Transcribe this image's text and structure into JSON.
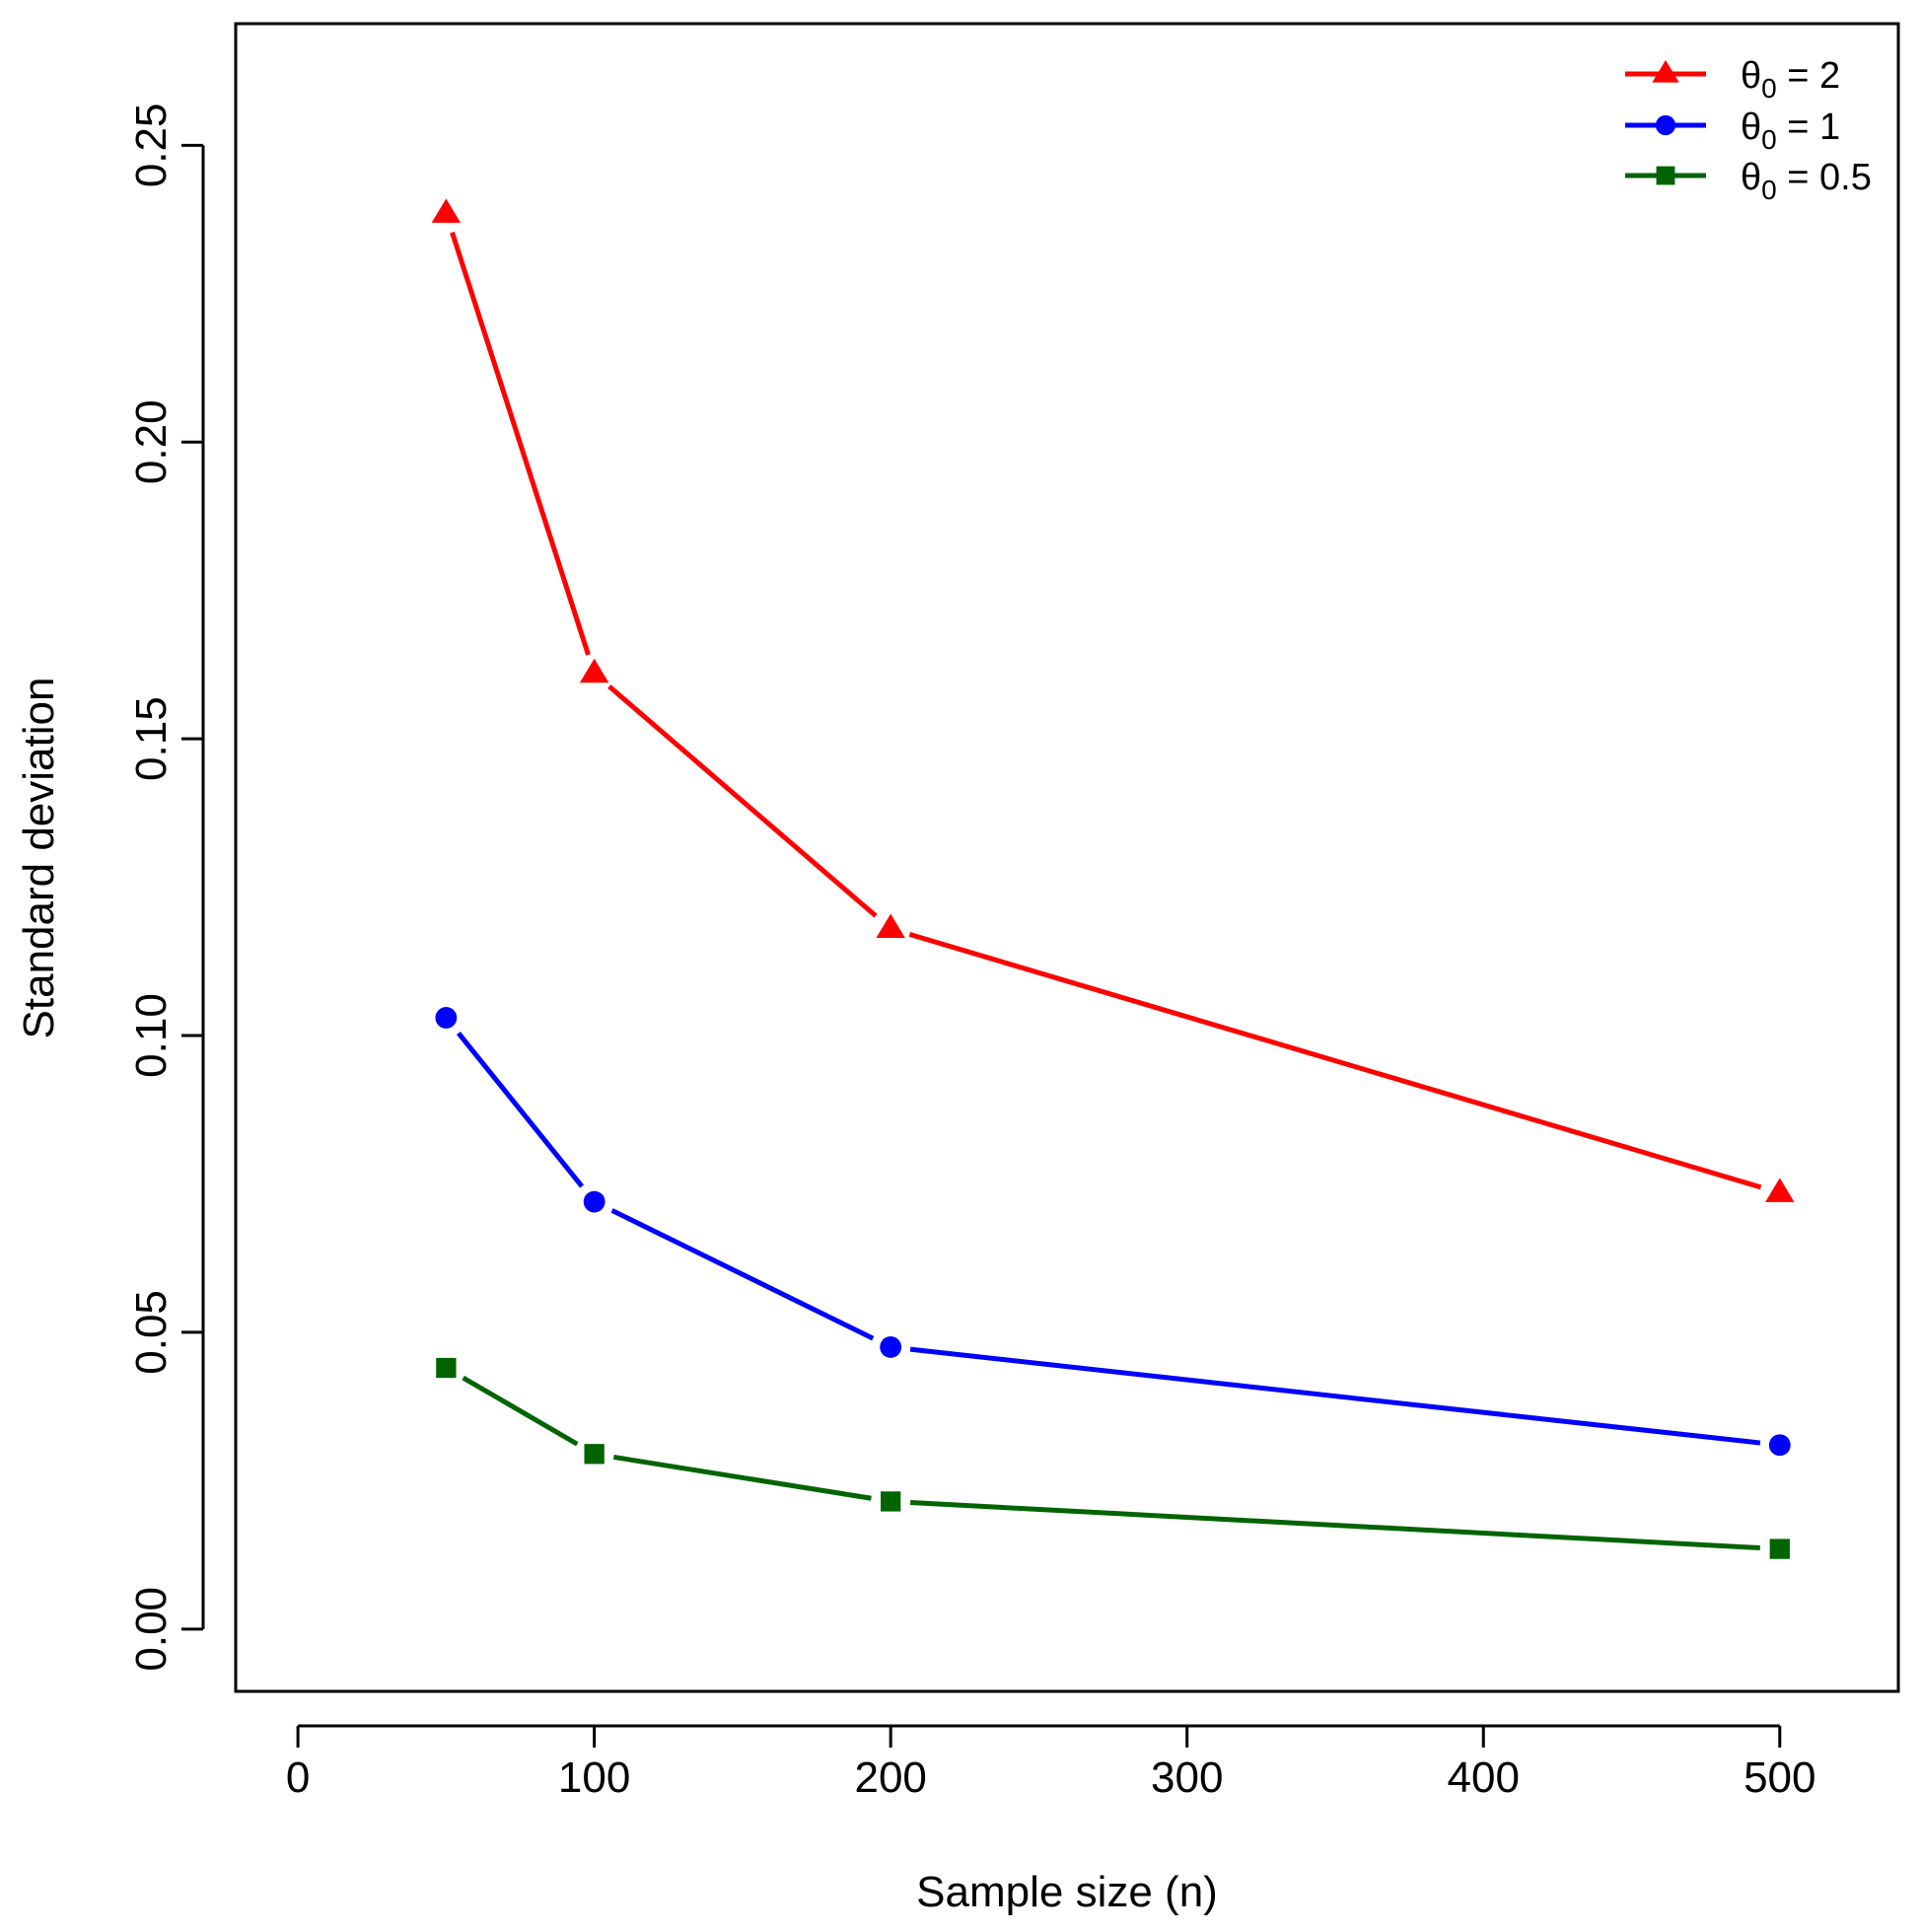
{
  "chart_data": {
    "type": "line",
    "title": "",
    "xlabel": "Sample size (n)",
    "ylabel": "Standard deviation",
    "x": [
      50,
      100,
      200,
      500
    ],
    "xlim": [
      -21,
      540
    ],
    "ylim": [
      -0.0105,
      0.2705
    ],
    "xticks": [
      0,
      100,
      200,
      300,
      400,
      500
    ],
    "xtick_labels": [
      "0",
      "100",
      "200",
      "300",
      "400",
      "500"
    ],
    "yticks": [
      0.0,
      0.05,
      0.1,
      0.15,
      0.2,
      0.25
    ],
    "ytick_labels": [
      "0.00",
      "0.05",
      "0.10",
      "0.15",
      "0.20",
      "0.25"
    ],
    "grid": false,
    "legend_position": "top-right",
    "series": [
      {
        "name_symbol": "θ",
        "name_sub": "0",
        "name_rest": " = 2",
        "color": "#ff0000",
        "marker": "triangle",
        "values": [
          0.2385,
          0.161,
          0.118,
          0.0735
        ]
      },
      {
        "name_symbol": "θ",
        "name_sub": "0",
        "name_rest": " = 1",
        "color": "#0000ff",
        "marker": "circle",
        "values": [
          0.103,
          0.072,
          0.0475,
          0.031
        ]
      },
      {
        "name_symbol": "θ",
        "name_sub": "0",
        "name_rest": " = 0.5",
        "color": "#006400",
        "marker": "square",
        "values": [
          0.044,
          0.0295,
          0.0215,
          0.0135
        ]
      }
    ]
  }
}
